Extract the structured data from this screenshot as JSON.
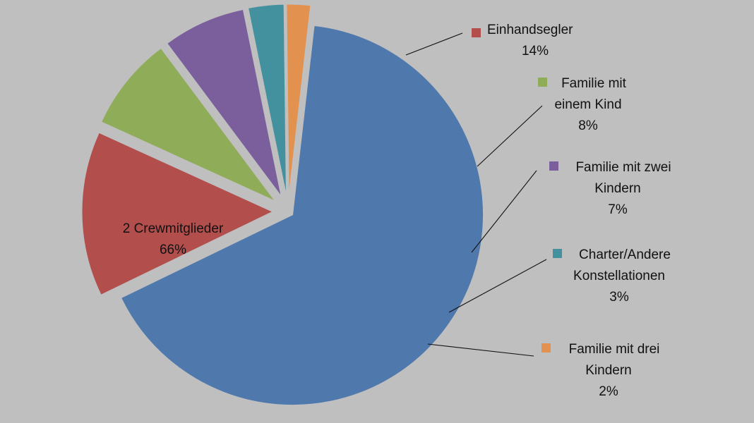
{
  "chart_data": {
    "type": "pie",
    "title": "",
    "legend": "labels beside slices, right side",
    "slices": [
      {
        "label": "2 Crewmitglieder",
        "value_label": "66%",
        "value": 66,
        "color": "#4f79ad"
      },
      {
        "label": "Einhandsegler",
        "value_label": "14%",
        "value": 14,
        "color": "#b24f4d"
      },
      {
        "label": "Familie mit einem Kind",
        "value_label": "8%",
        "value": 8,
        "color": "#8fad58"
      },
      {
        "label": "Familie mit zwei Kindern",
        "value_label": "7%",
        "value": 7,
        "color": "#7a5f9c"
      },
      {
        "label": "Charter/Andere Konstellationen",
        "value_label": "3%",
        "value": 3,
        "color": "#43919f"
      },
      {
        "label": "Familie mit drei Kindern",
        "value_label": "2%",
        "value": 2,
        "color": "#e3914e"
      }
    ]
  }
}
